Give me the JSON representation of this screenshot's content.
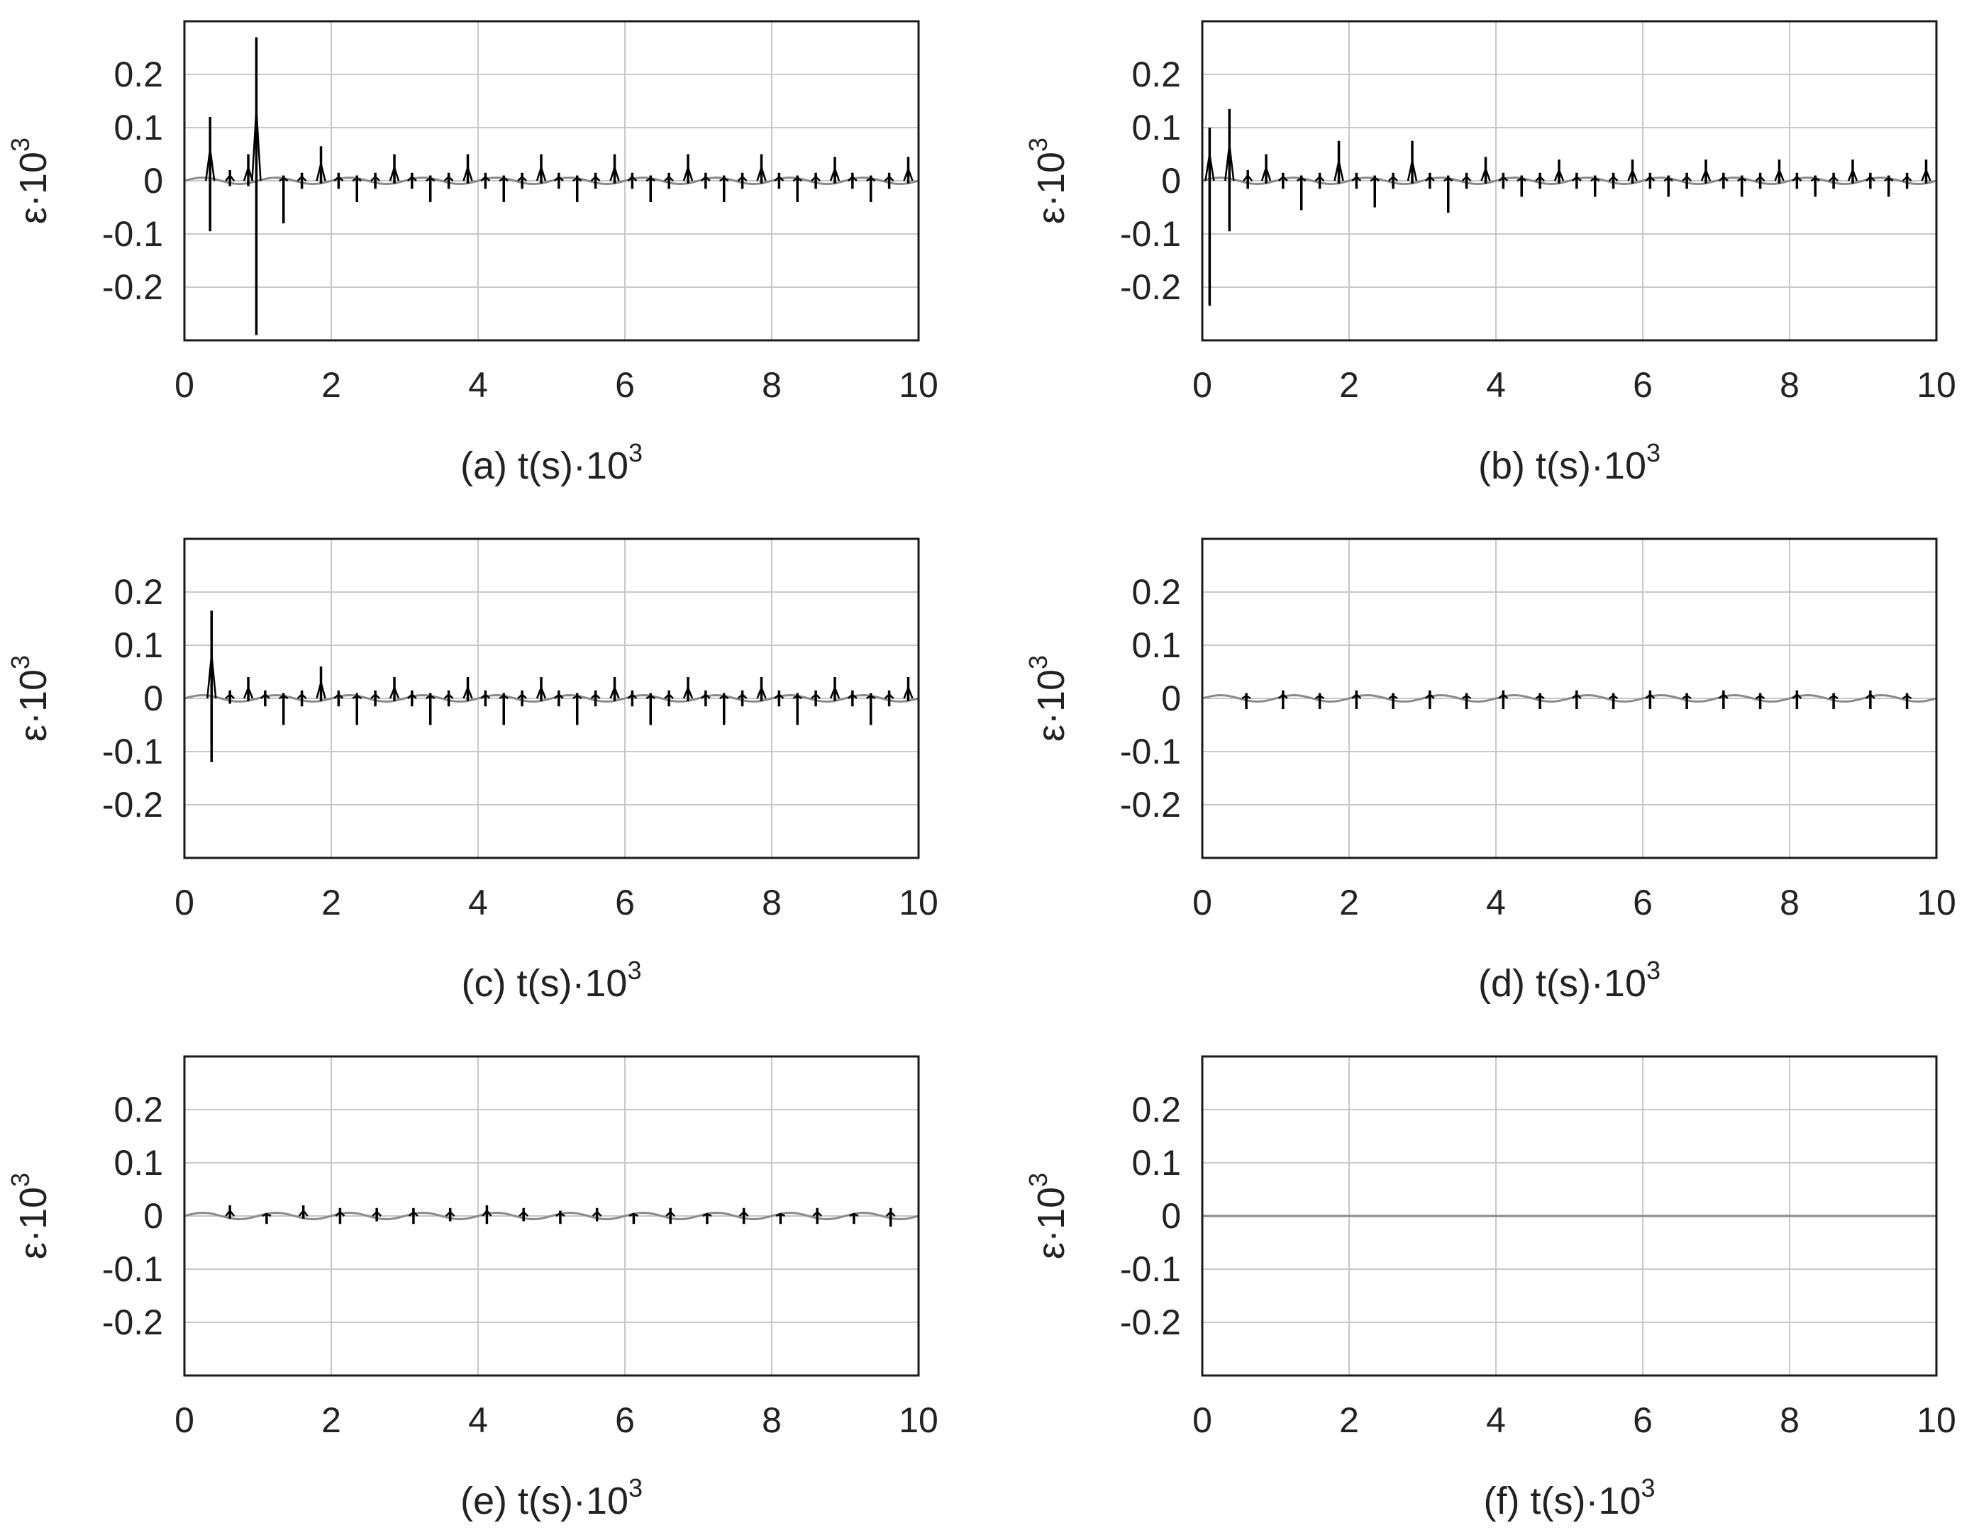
{
  "colors": {
    "frame": "#1a1a1a",
    "grid": "#c8c8c8",
    "signal": "#000000",
    "baseline": "#8a8a8a"
  },
  "chart_data": [
    {
      "panel": "(a)",
      "type": "line",
      "xlabel": "t(s)·10",
      "xlabel_exp": "3",
      "ylabel": "ε·10",
      "ylabel_exp": "3",
      "xlim": [
        0,
        10
      ],
      "ylim": [
        -0.3,
        0.3
      ],
      "xticks": [
        "0",
        "2",
        "4",
        "6",
        "8",
        "10"
      ],
      "yticks": [
        "0.2",
        "0.1",
        "0",
        "-0.1",
        "-0.2"
      ],
      "grid": true,
      "spikes": [
        {
          "x": 0.35,
          "ymax": 0.12,
          "ymin": -0.095
        },
        {
          "x": 0.62,
          "ymax": 0.02,
          "ymin": -0.01
        },
        {
          "x": 0.87,
          "ymax": 0.05,
          "ymin": -0.01
        },
        {
          "x": 0.98,
          "ymax": 0.27,
          "ymin": -0.29
        },
        {
          "x": 1.35,
          "ymax": 0.01,
          "ymin": -0.08
        },
        {
          "x": 1.6,
          "ymax": 0.015,
          "ymin": -0.015
        },
        {
          "x": 1.86,
          "ymax": 0.065,
          "ymin": -0.005
        },
        {
          "x": 2.1,
          "ymax": 0.015,
          "ymin": -0.015
        },
        {
          "x": 2.35,
          "ymax": 0.01,
          "ymin": -0.04
        },
        {
          "x": 2.6,
          "ymax": 0.015,
          "ymin": -0.015
        },
        {
          "x": 2.86,
          "ymax": 0.05,
          "ymin": -0.005
        },
        {
          "x": 3.1,
          "ymax": 0.015,
          "ymin": -0.015
        },
        {
          "x": 3.35,
          "ymax": 0.01,
          "ymin": -0.04
        },
        {
          "x": 3.6,
          "ymax": 0.015,
          "ymin": -0.015
        },
        {
          "x": 3.86,
          "ymax": 0.05,
          "ymin": -0.005
        },
        {
          "x": 4.1,
          "ymax": 0.015,
          "ymin": -0.015
        },
        {
          "x": 4.35,
          "ymax": 0.01,
          "ymin": -0.04
        },
        {
          "x": 4.6,
          "ymax": 0.015,
          "ymin": -0.015
        },
        {
          "x": 4.86,
          "ymax": 0.05,
          "ymin": -0.005
        },
        {
          "x": 5.1,
          "ymax": 0.015,
          "ymin": -0.015
        },
        {
          "x": 5.35,
          "ymax": 0.01,
          "ymin": -0.04
        },
        {
          "x": 5.6,
          "ymax": 0.015,
          "ymin": -0.015
        },
        {
          "x": 5.86,
          "ymax": 0.05,
          "ymin": -0.005
        },
        {
          "x": 6.1,
          "ymax": 0.015,
          "ymin": -0.015
        },
        {
          "x": 6.35,
          "ymax": 0.01,
          "ymin": -0.04
        },
        {
          "x": 6.6,
          "ymax": 0.015,
          "ymin": -0.015
        },
        {
          "x": 6.86,
          "ymax": 0.05,
          "ymin": -0.005
        },
        {
          "x": 7.1,
          "ymax": 0.015,
          "ymin": -0.015
        },
        {
          "x": 7.35,
          "ymax": 0.01,
          "ymin": -0.04
        },
        {
          "x": 7.6,
          "ymax": 0.015,
          "ymin": -0.015
        },
        {
          "x": 7.86,
          "ymax": 0.05,
          "ymin": -0.005
        },
        {
          "x": 8.1,
          "ymax": 0.015,
          "ymin": -0.015
        },
        {
          "x": 8.35,
          "ymax": 0.01,
          "ymin": -0.04
        },
        {
          "x": 8.6,
          "ymax": 0.015,
          "ymin": -0.015
        },
        {
          "x": 8.86,
          "ymax": 0.045,
          "ymin": -0.005
        },
        {
          "x": 9.1,
          "ymax": 0.015,
          "ymin": -0.015
        },
        {
          "x": 9.35,
          "ymax": 0.01,
          "ymin": -0.04
        },
        {
          "x": 9.6,
          "ymax": 0.015,
          "ymin": -0.015
        },
        {
          "x": 9.86,
          "ymax": 0.045,
          "ymin": -0.005
        }
      ]
    },
    {
      "panel": "(b)",
      "type": "line",
      "xlabel": "t(s)·10",
      "xlabel_exp": "3",
      "ylabel": "ε·10",
      "ylabel_exp": "3",
      "xlim": [
        0,
        10
      ],
      "ylim": [
        -0.3,
        0.3
      ],
      "xticks": [
        "0",
        "2",
        "4",
        "6",
        "8",
        "10"
      ],
      "yticks": [
        "0.2",
        "0.1",
        "0",
        "-0.1",
        "-0.2"
      ],
      "grid": true,
      "spikes": [
        {
          "x": 0.1,
          "ymax": 0.1,
          "ymin": -0.235
        },
        {
          "x": 0.37,
          "ymax": 0.135,
          "ymin": -0.095
        },
        {
          "x": 0.62,
          "ymax": 0.02,
          "ymin": -0.015
        },
        {
          "x": 0.87,
          "ymax": 0.05,
          "ymin": -0.005
        },
        {
          "x": 1.1,
          "ymax": 0.015,
          "ymin": -0.015
        },
        {
          "x": 1.35,
          "ymax": 0.01,
          "ymin": -0.055
        },
        {
          "x": 1.6,
          "ymax": 0.015,
          "ymin": -0.015
        },
        {
          "x": 1.86,
          "ymax": 0.075,
          "ymin": -0.005
        },
        {
          "x": 2.1,
          "ymax": 0.015,
          "ymin": -0.015
        },
        {
          "x": 2.35,
          "ymax": 0.01,
          "ymin": -0.05
        },
        {
          "x": 2.6,
          "ymax": 0.015,
          "ymin": -0.015
        },
        {
          "x": 2.86,
          "ymax": 0.075,
          "ymin": -0.005
        },
        {
          "x": 3.1,
          "ymax": 0.015,
          "ymin": -0.015
        },
        {
          "x": 3.35,
          "ymax": 0.01,
          "ymin": -0.06
        },
        {
          "x": 3.6,
          "ymax": 0.015,
          "ymin": -0.015
        },
        {
          "x": 3.86,
          "ymax": 0.045,
          "ymin": -0.005
        },
        {
          "x": 4.1,
          "ymax": 0.015,
          "ymin": -0.015
        },
        {
          "x": 4.35,
          "ymax": 0.01,
          "ymin": -0.03
        },
        {
          "x": 4.6,
          "ymax": 0.015,
          "ymin": -0.015
        },
        {
          "x": 4.86,
          "ymax": 0.04,
          "ymin": -0.005
        },
        {
          "x": 5.1,
          "ymax": 0.015,
          "ymin": -0.015
        },
        {
          "x": 5.35,
          "ymax": 0.01,
          "ymin": -0.03
        },
        {
          "x": 5.6,
          "ymax": 0.015,
          "ymin": -0.015
        },
        {
          "x": 5.86,
          "ymax": 0.04,
          "ymin": -0.005
        },
        {
          "x": 6.1,
          "ymax": 0.015,
          "ymin": -0.015
        },
        {
          "x": 6.35,
          "ymax": 0.01,
          "ymin": -0.03
        },
        {
          "x": 6.6,
          "ymax": 0.015,
          "ymin": -0.015
        },
        {
          "x": 6.86,
          "ymax": 0.04,
          "ymin": -0.005
        },
        {
          "x": 7.1,
          "ymax": 0.015,
          "ymin": -0.015
        },
        {
          "x": 7.35,
          "ymax": 0.01,
          "ymin": -0.03
        },
        {
          "x": 7.6,
          "ymax": 0.015,
          "ymin": -0.015
        },
        {
          "x": 7.86,
          "ymax": 0.04,
          "ymin": -0.005
        },
        {
          "x": 8.1,
          "ymax": 0.015,
          "ymin": -0.015
        },
        {
          "x": 8.35,
          "ymax": 0.01,
          "ymin": -0.03
        },
        {
          "x": 8.6,
          "ymax": 0.015,
          "ymin": -0.015
        },
        {
          "x": 8.86,
          "ymax": 0.04,
          "ymin": -0.005
        },
        {
          "x": 9.1,
          "ymax": 0.015,
          "ymin": -0.015
        },
        {
          "x": 9.35,
          "ymax": 0.01,
          "ymin": -0.03
        },
        {
          "x": 9.6,
          "ymax": 0.015,
          "ymin": -0.015
        },
        {
          "x": 9.86,
          "ymax": 0.04,
          "ymin": -0.005
        }
      ]
    },
    {
      "panel": "(c)",
      "type": "line",
      "xlabel": "t(s)·10",
      "xlabel_exp": "3",
      "ylabel": "ε·10",
      "ylabel_exp": "3",
      "xlim": [
        0,
        10
      ],
      "ylim": [
        -0.3,
        0.3
      ],
      "xticks": [
        "0",
        "2",
        "4",
        "6",
        "8",
        "10"
      ],
      "yticks": [
        "0.2",
        "0.1",
        "0",
        "-0.1",
        "-0.2"
      ],
      "grid": true,
      "spikes": [
        {
          "x": 0.37,
          "ymax": 0.165,
          "ymin": -0.12
        },
        {
          "x": 0.62,
          "ymax": 0.015,
          "ymin": -0.01
        },
        {
          "x": 0.87,
          "ymax": 0.04,
          "ymin": -0.005
        },
        {
          "x": 1.1,
          "ymax": 0.015,
          "ymin": -0.015
        },
        {
          "x": 1.35,
          "ymax": 0.01,
          "ymin": -0.05
        },
        {
          "x": 1.6,
          "ymax": 0.015,
          "ymin": -0.015
        },
        {
          "x": 1.86,
          "ymax": 0.06,
          "ymin": -0.005
        },
        {
          "x": 2.1,
          "ymax": 0.015,
          "ymin": -0.015
        },
        {
          "x": 2.35,
          "ymax": 0.01,
          "ymin": -0.05
        },
        {
          "x": 2.6,
          "ymax": 0.015,
          "ymin": -0.015
        },
        {
          "x": 2.86,
          "ymax": 0.04,
          "ymin": -0.005
        },
        {
          "x": 3.1,
          "ymax": 0.015,
          "ymin": -0.015
        },
        {
          "x": 3.35,
          "ymax": 0.01,
          "ymin": -0.05
        },
        {
          "x": 3.6,
          "ymax": 0.015,
          "ymin": -0.015
        },
        {
          "x": 3.86,
          "ymax": 0.04,
          "ymin": -0.005
        },
        {
          "x": 4.1,
          "ymax": 0.015,
          "ymin": -0.015
        },
        {
          "x": 4.35,
          "ymax": 0.01,
          "ymin": -0.05
        },
        {
          "x": 4.6,
          "ymax": 0.015,
          "ymin": -0.015
        },
        {
          "x": 4.86,
          "ymax": 0.04,
          "ymin": -0.005
        },
        {
          "x": 5.1,
          "ymax": 0.015,
          "ymin": -0.015
        },
        {
          "x": 5.35,
          "ymax": 0.01,
          "ymin": -0.05
        },
        {
          "x": 5.6,
          "ymax": 0.015,
          "ymin": -0.015
        },
        {
          "x": 5.86,
          "ymax": 0.04,
          "ymin": -0.005
        },
        {
          "x": 6.1,
          "ymax": 0.015,
          "ymin": -0.015
        },
        {
          "x": 6.35,
          "ymax": 0.01,
          "ymin": -0.05
        },
        {
          "x": 6.6,
          "ymax": 0.015,
          "ymin": -0.015
        },
        {
          "x": 6.86,
          "ymax": 0.04,
          "ymin": -0.005
        },
        {
          "x": 7.1,
          "ymax": 0.015,
          "ymin": -0.015
        },
        {
          "x": 7.35,
          "ymax": 0.01,
          "ymin": -0.05
        },
        {
          "x": 7.6,
          "ymax": 0.015,
          "ymin": -0.015
        },
        {
          "x": 7.86,
          "ymax": 0.04,
          "ymin": -0.005
        },
        {
          "x": 8.1,
          "ymax": 0.015,
          "ymin": -0.015
        },
        {
          "x": 8.35,
          "ymax": 0.01,
          "ymin": -0.05
        },
        {
          "x": 8.6,
          "ymax": 0.015,
          "ymin": -0.015
        },
        {
          "x": 8.86,
          "ymax": 0.04,
          "ymin": -0.005
        },
        {
          "x": 9.1,
          "ymax": 0.015,
          "ymin": -0.015
        },
        {
          "x": 9.35,
          "ymax": 0.01,
          "ymin": -0.05
        },
        {
          "x": 9.6,
          "ymax": 0.015,
          "ymin": -0.015
        },
        {
          "x": 9.86,
          "ymax": 0.04,
          "ymin": -0.005
        }
      ]
    },
    {
      "panel": "(d)",
      "type": "line",
      "xlabel": "t(s)·10",
      "xlabel_exp": "3",
      "ylabel": "ε·10",
      "ylabel_exp": "3",
      "xlim": [
        0,
        10
      ],
      "ylim": [
        -0.3,
        0.3
      ],
      "xticks": [
        "0",
        "2",
        "4",
        "6",
        "8",
        "10"
      ],
      "yticks": [
        "0.2",
        "0.1",
        "0",
        "-0.1",
        "-0.2"
      ],
      "grid": true,
      "spikes": [
        {
          "x": 0.6,
          "ymax": 0.01,
          "ymin": -0.02
        },
        {
          "x": 1.1,
          "ymax": 0.015,
          "ymin": -0.02
        },
        {
          "x": 1.6,
          "ymax": 0.01,
          "ymin": -0.02
        },
        {
          "x": 2.1,
          "ymax": 0.015,
          "ymin": -0.02
        },
        {
          "x": 2.6,
          "ymax": 0.01,
          "ymin": -0.02
        },
        {
          "x": 3.1,
          "ymax": 0.015,
          "ymin": -0.02
        },
        {
          "x": 3.6,
          "ymax": 0.01,
          "ymin": -0.02
        },
        {
          "x": 4.1,
          "ymax": 0.015,
          "ymin": -0.02
        },
        {
          "x": 4.6,
          "ymax": 0.01,
          "ymin": -0.02
        },
        {
          "x": 5.1,
          "ymax": 0.015,
          "ymin": -0.02
        },
        {
          "x": 5.6,
          "ymax": 0.01,
          "ymin": -0.02
        },
        {
          "x": 6.1,
          "ymax": 0.015,
          "ymin": -0.02
        },
        {
          "x": 6.6,
          "ymax": 0.01,
          "ymin": -0.02
        },
        {
          "x": 7.1,
          "ymax": 0.015,
          "ymin": -0.02
        },
        {
          "x": 7.6,
          "ymax": 0.01,
          "ymin": -0.02
        },
        {
          "x": 8.1,
          "ymax": 0.015,
          "ymin": -0.02
        },
        {
          "x": 8.6,
          "ymax": 0.01,
          "ymin": -0.02
        },
        {
          "x": 9.1,
          "ymax": 0.015,
          "ymin": -0.02
        },
        {
          "x": 9.6,
          "ymax": 0.01,
          "ymin": -0.02
        }
      ]
    },
    {
      "panel": "(e)",
      "type": "line",
      "xlabel": "t(s)·10",
      "xlabel_exp": "3",
      "ylabel": "ε·10",
      "ylabel_exp": "3",
      "xlim": [
        0,
        10
      ],
      "ylim": [
        -0.3,
        0.3
      ],
      "xticks": [
        "0",
        "2",
        "4",
        "6",
        "8",
        "10"
      ],
      "yticks": [
        "0.2",
        "0.1",
        "0",
        "-0.1",
        "-0.2"
      ],
      "grid": true,
      "spikes": [
        {
          "x": 0.62,
          "ymax": 0.02,
          "ymin": -0.005
        },
        {
          "x": 1.12,
          "ymax": 0.005,
          "ymin": -0.015
        },
        {
          "x": 1.62,
          "ymax": 0.02,
          "ymin": -0.005
        },
        {
          "x": 2.12,
          "ymax": 0.015,
          "ymin": -0.015
        },
        {
          "x": 2.62,
          "ymax": 0.015,
          "ymin": -0.01
        },
        {
          "x": 3.12,
          "ymax": 0.015,
          "ymin": -0.015
        },
        {
          "x": 3.62,
          "ymax": 0.015,
          "ymin": -0.01
        },
        {
          "x": 4.12,
          "ymax": 0.02,
          "ymin": -0.015
        },
        {
          "x": 4.62,
          "ymax": 0.015,
          "ymin": -0.01
        },
        {
          "x": 5.12,
          "ymax": 0.01,
          "ymin": -0.015
        },
        {
          "x": 5.62,
          "ymax": 0.015,
          "ymin": -0.01
        },
        {
          "x": 6.12,
          "ymax": 0.005,
          "ymin": -0.015
        },
        {
          "x": 6.62,
          "ymax": 0.015,
          "ymin": -0.015
        },
        {
          "x": 7.12,
          "ymax": 0.005,
          "ymin": -0.015
        },
        {
          "x": 7.62,
          "ymax": 0.015,
          "ymin": -0.015
        },
        {
          "x": 8.12,
          "ymax": 0.005,
          "ymin": -0.015
        },
        {
          "x": 8.62,
          "ymax": 0.015,
          "ymin": -0.015
        },
        {
          "x": 9.12,
          "ymax": 0.005,
          "ymin": -0.015
        },
        {
          "x": 9.62,
          "ymax": 0.015,
          "ymin": -0.02
        }
      ]
    },
    {
      "panel": "(f)",
      "type": "line",
      "xlabel": "t(s)·10",
      "xlabel_exp": "3",
      "ylabel": "ε·10",
      "ylabel_exp": "3",
      "xlim": [
        0,
        10
      ],
      "ylim": [
        -0.3,
        0.3
      ],
      "xticks": [
        "0",
        "2",
        "4",
        "6",
        "8",
        "10"
      ],
      "yticks": [
        "0.2",
        "0.1",
        "0",
        "-0.1",
        "-0.2"
      ],
      "grid": true,
      "spikes": []
    }
  ]
}
